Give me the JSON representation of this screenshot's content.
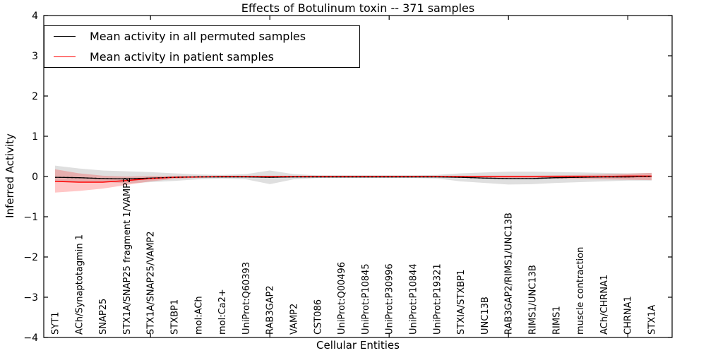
{
  "title": "Effects of Botulinum toxin -- 371 samples",
  "legend": {
    "position": "upper left",
    "items": [
      {
        "label": "Mean activity in all permuted samples",
        "color": "#000000"
      },
      {
        "label": "Mean activity in patient samples",
        "color": "#ff0000"
      }
    ]
  },
  "axes": {
    "xlabel": "Cellular Entities",
    "ylabel": "Inferred Activity"
  },
  "chart_data": {
    "type": "line",
    "title": "Effects of Botulinum toxin -- 371 samples",
    "xlabel": "Cellular Entities",
    "ylabel": "Inferred Activity",
    "ylim": [
      -4,
      4
    ],
    "grid": false,
    "legend_position": "upper left",
    "y_tick_labels": [
      "4",
      "3",
      "2",
      "1",
      "0",
      "−1",
      "−2",
      "−3",
      "−4"
    ],
    "y_tick_values": [
      4,
      3,
      2,
      1,
      0,
      -1,
      -2,
      -3,
      -4
    ],
    "x_major_tick_indices": [
      4,
      9,
      14,
      19,
      24
    ],
    "categories": [
      "SYT1",
      "ACh/Synaptotagmin 1",
      "SNAP25",
      "STX1A/SNAP25 fragment 1/VAMP2",
      "STX1A/SNAP25/VAMP2",
      "STXBP1",
      "mol:ACh",
      "mol:Ca2+",
      "UniProt:Q60393",
      "RAB3GAP2",
      "VAMP2",
      "CST086",
      "UniProt:Q00496",
      "UniProt:P10845",
      "UniProt:P30996",
      "UniProt:P10844",
      "UniProt:P19321",
      "STXIA/STXBP1",
      "UNC13B",
      "RAB3GAP2/RIMS1/UNC13B",
      "RIMS1/UNC13B",
      "RIMS1",
      "muscle contraction",
      "ACh/CHRNA1",
      "CHRNA1",
      "STX1A"
    ],
    "series": [
      {
        "name": "Mean activity in all permuted samples",
        "color": "#000000",
        "band_color": "rgba(80,80,80,0.18)",
        "values": [
          -0.02,
          -0.03,
          -0.05,
          -0.06,
          -0.04,
          -0.02,
          -0.01,
          -0.01,
          -0.01,
          -0.02,
          -0.01,
          -0.01,
          -0.01,
          -0.01,
          -0.01,
          -0.01,
          -0.01,
          -0.02,
          -0.04,
          -0.05,
          -0.05,
          -0.03,
          -0.02,
          -0.01,
          -0.01,
          0.0
        ],
        "band_upper": [
          0.27,
          0.2,
          0.15,
          0.13,
          0.11,
          0.08,
          0.05,
          0.04,
          0.06,
          0.15,
          0.06,
          0.03,
          0.03,
          0.03,
          0.03,
          0.03,
          0.04,
          0.08,
          0.1,
          0.12,
          0.12,
          0.11,
          0.1,
          0.09,
          0.08,
          0.09
        ],
        "band_lower": [
          -0.13,
          -0.13,
          -0.13,
          -0.17,
          -0.14,
          -0.11,
          -0.07,
          -0.05,
          -0.07,
          -0.19,
          -0.07,
          -0.04,
          -0.04,
          -0.04,
          -0.04,
          -0.04,
          -0.05,
          -0.12,
          -0.16,
          -0.2,
          -0.19,
          -0.16,
          -0.14,
          -0.12,
          -0.1,
          -0.1
        ]
      },
      {
        "name": "Mean activity in patient samples",
        "color": "#ff0000",
        "band_color": "rgba(255,0,0,0.22)",
        "values": [
          -0.12,
          -0.14,
          -0.14,
          -0.1,
          -0.05,
          -0.02,
          -0.01,
          0.0,
          0.0,
          0.0,
          0.0,
          0.0,
          0.0,
          0.0,
          0.0,
          0.0,
          0.0,
          0.0,
          0.0,
          0.0,
          0.0,
          0.0,
          0.0,
          0.0,
          0.01,
          0.01
        ],
        "band_upper": [
          0.18,
          0.08,
          0.02,
          0.0,
          0.01,
          0.01,
          0.01,
          0.01,
          0.01,
          0.01,
          0.01,
          0.01,
          0.01,
          0.01,
          0.01,
          0.01,
          0.01,
          0.01,
          0.02,
          0.02,
          0.02,
          0.03,
          0.04,
          0.05,
          0.07,
          0.09
        ],
        "band_lower": [
          -0.4,
          -0.36,
          -0.3,
          -0.21,
          -0.12,
          -0.06,
          -0.03,
          -0.02,
          -0.02,
          -0.02,
          -0.02,
          -0.02,
          -0.02,
          -0.02,
          -0.02,
          -0.02,
          -0.02,
          -0.03,
          -0.03,
          -0.04,
          -0.04,
          -0.05,
          -0.06,
          -0.07,
          -0.08,
          -0.09
        ]
      }
    ]
  }
}
